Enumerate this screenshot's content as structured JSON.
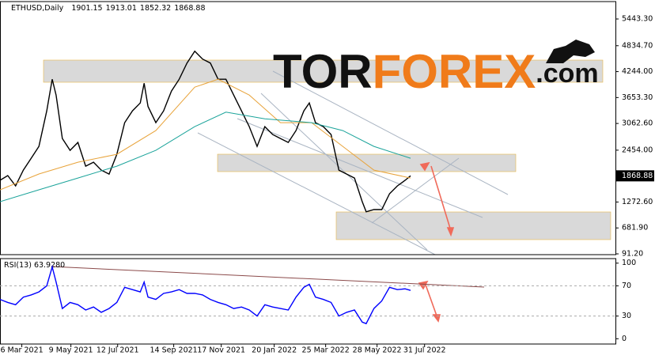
{
  "chart_data": [
    {
      "type": "line",
      "title": "ETHUSD,Daily",
      "ohlc": [
        1901.15,
        1913.01,
        1852.32,
        1868.88
      ],
      "x": [
        0,
        10,
        20,
        30,
        40,
        50,
        60,
        67,
        72,
        80,
        90,
        100,
        110,
        120,
        130,
        140,
        150,
        160,
        170,
        180,
        185,
        190,
        200,
        210,
        220,
        230,
        240,
        250,
        260,
        270,
        280,
        290,
        300,
        310,
        320,
        330,
        340,
        350,
        360,
        370,
        380,
        390,
        397,
        405,
        415,
        425,
        435,
        445,
        455,
        465,
        470,
        480,
        490,
        500,
        510,
        520,
        527
      ],
      "series": [
        {
          "color": "#000000",
          "x": [
            0,
            10,
            20,
            30,
            40,
            50,
            60,
            67,
            72,
            80,
            90,
            100,
            110,
            120,
            130,
            140,
            150,
            160,
            170,
            180,
            185,
            190,
            200,
            210,
            220,
            230,
            240,
            250,
            260,
            270,
            280,
            290,
            300,
            310,
            320,
            330,
            340,
            350,
            360,
            370,
            380,
            390,
            397,
            405,
            415,
            425,
            435,
            445,
            455,
            465,
            470,
            480,
            490,
            500,
            510,
            520,
            527
          ],
          "values": [
            1767,
            1876,
            1640,
            2000,
            2270,
            2540,
            3350,
            4070,
            3710,
            2720,
            2450,
            2630,
            2090,
            2180,
            2000,
            1910,
            2360,
            3080,
            3350,
            3530,
            3980,
            3450,
            3080,
            3350,
            3800,
            4070,
            4440,
            4710,
            4530,
            4440,
            4070,
            4070,
            3710,
            3350,
            2990,
            2540,
            2990,
            2810,
            2720,
            2630,
            2900,
            3350,
            3530,
            3080,
            2990,
            2810,
            2000,
            1910,
            1820,
            1280,
            1050,
            1100,
            1100,
            1460,
            1640,
            1767,
            1868.88
          ]
        },
        {
          "color": "#e8a33a",
          "x": [
            0,
            50,
            100,
            150,
            200,
            250,
            280,
            320,
            360,
            400,
            440,
            480,
            527
          ],
          "values": [
            1551,
            1912,
            2180,
            2360,
            2900,
            3890,
            4070,
            3710,
            3080,
            3080,
            2540,
            2000,
            1820
          ]
        },
        {
          "color": "#1aa39a",
          "x": [
            0,
            50,
            100,
            150,
            200,
            250,
            290,
            340,
            400,
            440,
            480,
            527
          ],
          "values": [
            1281,
            1551,
            1820,
            2090,
            2450,
            2990,
            3320,
            3170,
            3080,
            2900,
            2540,
            2270
          ]
        }
      ],
      "xlim": [
        0,
        790
      ],
      "ylim": [
        73,
        5840
      ],
      "yticks": [
        {
          "value": 5443.3,
          "label": "5443.30"
        },
        {
          "value": 4834.7,
          "label": "4834.70"
        },
        {
          "value": 4244,
          "label": "4244.00"
        },
        {
          "value": 3653.3,
          "label": "3653.30"
        },
        {
          "value": 3062.6,
          "label": "3062.60"
        },
        {
          "value": 2454,
          "label": "2454.00"
        },
        {
          "value": 1272.6,
          "label": "1272.60"
        },
        {
          "value": 681.9,
          "label": "681.90"
        },
        {
          "value": 91.2,
          "label": "91.20"
        }
      ]
    },
    {
      "type": "line",
      "title": "RSI(13)",
      "current": {
        "value": 63.928,
        "label": "63.9280"
      },
      "x": [
        0,
        10,
        20,
        30,
        40,
        50,
        60,
        67,
        72,
        80,
        90,
        100,
        110,
        120,
        130,
        140,
        150,
        160,
        170,
        180,
        185,
        190,
        200,
        210,
        220,
        230,
        240,
        250,
        260,
        270,
        280,
        290,
        300,
        310,
        320,
        330,
        340,
        350,
        360,
        370,
        380,
        390,
        397,
        405,
        415,
        425,
        435,
        445,
        455,
        465,
        470,
        480,
        490,
        500,
        510,
        520,
        527
      ],
      "series": [
        {
          "color": "#0000ff",
          "values": [
            52,
            48,
            45,
            55,
            58,
            62,
            70,
            95,
            75,
            40,
            48,
            45,
            38,
            42,
            35,
            40,
            48,
            68,
            65,
            62,
            75,
            55,
            52,
            60,
            62,
            65,
            60,
            60,
            58,
            52,
            48,
            45,
            40,
            42,
            38,
            30,
            45,
            42,
            40,
            38,
            55,
            68,
            72,
            55,
            52,
            48,
            30,
            35,
            38,
            22,
            20,
            40,
            50,
            68,
            65,
            66,
            63.928
          ]
        }
      ],
      "xlim": [
        0,
        790
      ],
      "ylim": [
        -7,
        106
      ],
      "yticks": [
        100,
        70,
        30,
        0
      ],
      "xticks": [
        {
          "value": 28,
          "label": "6 Mar 2021"
        },
        {
          "value": 91,
          "label": "9 May 2021"
        },
        {
          "value": 151,
          "label": "12 Jul 2021"
        },
        {
          "value": 223,
          "label": "14 Sep 2021"
        },
        {
          "value": 284,
          "label": "17 Nov 2021"
        },
        {
          "value": 352,
          "label": "20 Jan 2022"
        },
        {
          "value": 418,
          "label": "25 Mar 2022"
        },
        {
          "value": 484,
          "label": "28 May 2022"
        },
        {
          "value": 545,
          "label": "31 Jul 2022"
        }
      ]
    }
  ],
  "watermark": {
    "parts": [
      "TOR",
      "FOREX",
      ".com"
    ]
  }
}
